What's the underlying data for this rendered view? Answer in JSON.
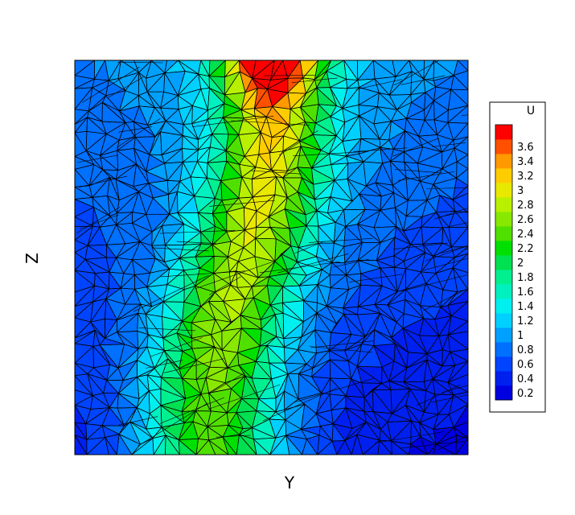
{
  "chart_data": {
    "type": "heatmap",
    "subtype": "contour-on-triangular-mesh",
    "title": "",
    "xlabel": "Y",
    "ylabel": "Z",
    "grid": false,
    "mesh_overlay": true,
    "colorbar": {
      "title": "U",
      "placement": "right",
      "levels": [
        0.2,
        0.4,
        0.6,
        0.8,
        1,
        1.2,
        1.4,
        1.6,
        1.8,
        2,
        2.2,
        2.4,
        2.6,
        2.8,
        3,
        3.2,
        3.4,
        3.6
      ],
      "tick_labels": [
        "3.6",
        "3.4",
        "3.2",
        "3",
        "2.8",
        "2.6",
        "2.4",
        "2.2",
        "2",
        "1.8",
        "1.6",
        "1.4",
        "1.2",
        "1",
        "0.8",
        "0.6",
        "0.4",
        "0.2"
      ],
      "colors": [
        "#0000e0",
        "#0020f0",
        "#0044ff",
        "#0070ff",
        "#00a0ff",
        "#00d0ff",
        "#00f0f0",
        "#00f0c0",
        "#00f090",
        "#00e050",
        "#00e000",
        "#50e000",
        "#88e800",
        "#b8f000",
        "#e8e800",
        "#ffcc00",
        "#ff9900",
        "#ff5000",
        "#ff0000"
      ]
    }
  },
  "colors": {
    "mesh_line": "#000000",
    "frame": "#000000",
    "background": "#ffffff"
  }
}
